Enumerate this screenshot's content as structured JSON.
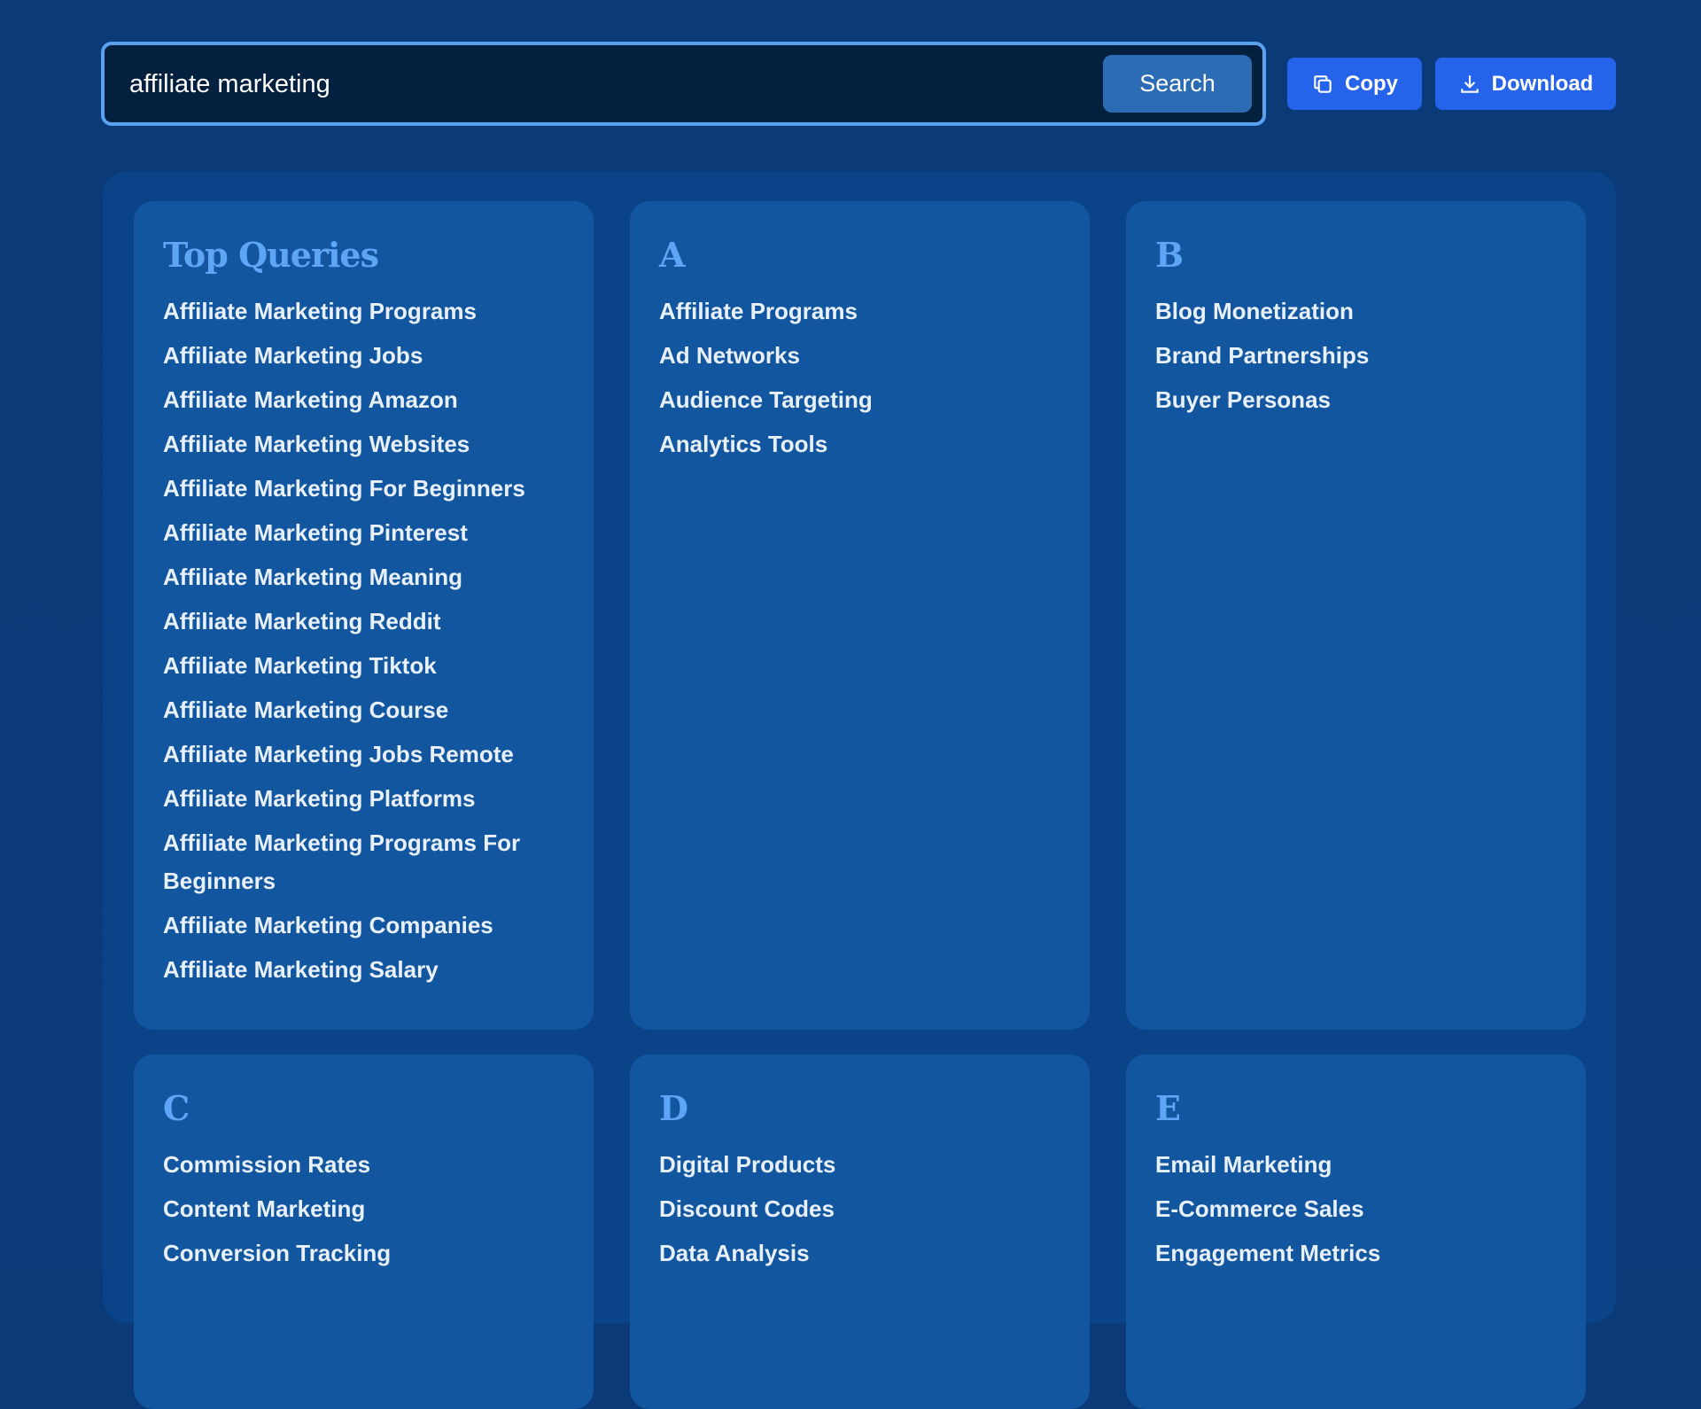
{
  "search": {
    "value": "affiliate marketing",
    "button_label": "Search"
  },
  "actions": {
    "copy_label": "Copy",
    "download_label": "Download"
  },
  "cards": [
    {
      "title": "Top Queries",
      "items": [
        "Affiliate Marketing Programs",
        "Affiliate Marketing Jobs",
        "Affiliate Marketing Amazon",
        "Affiliate Marketing Websites",
        "Affiliate Marketing For Beginners",
        "Affiliate Marketing Pinterest",
        "Affiliate Marketing Meaning",
        "Affiliate Marketing Reddit",
        "Affiliate Marketing Tiktok",
        "Affiliate Marketing Course",
        "Affiliate Marketing Jobs Remote",
        "Affiliate Marketing Platforms",
        "Affiliate Marketing Programs For Beginners",
        "Affiliate Marketing Companies",
        "Affiliate Marketing Salary"
      ]
    },
    {
      "title": "A",
      "items": [
        "Affiliate Programs",
        "Ad Networks",
        "Audience Targeting",
        "Analytics Tools"
      ]
    },
    {
      "title": "B",
      "items": [
        "Blog Monetization",
        "Brand Partnerships",
        "Buyer Personas"
      ]
    },
    {
      "title": "C",
      "items": [
        "Commission Rates",
        "Content Marketing",
        "Conversion Tracking"
      ]
    },
    {
      "title": "D",
      "items": [
        "Digital Products",
        "Discount Codes",
        "Data Analysis"
      ]
    },
    {
      "title": "E",
      "items": [
        "Email Marketing",
        "E-Commerce Sales",
        "Engagement Metrics"
      ]
    }
  ]
}
